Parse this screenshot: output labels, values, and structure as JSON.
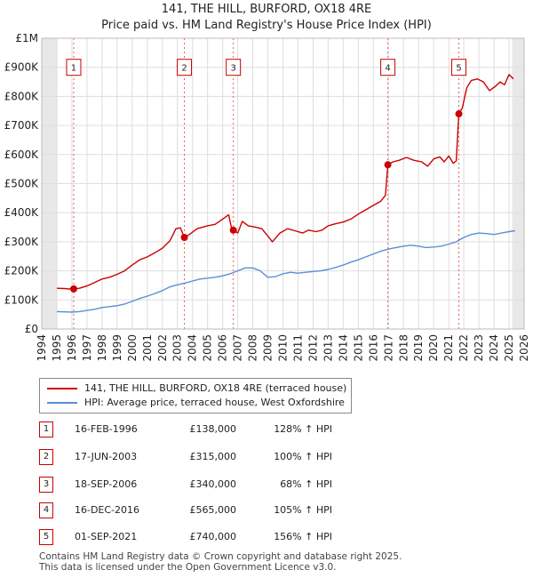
{
  "chart_data": {
    "type": "line",
    "title": "141, THE HILL, BURFORD, OX18 4RE",
    "subtitle": "Price paid vs. HM Land Registry's House Price Index (HPI)",
    "xlim": [
      1994,
      2026
    ],
    "ylim": [
      0,
      1000000
    ],
    "x_ticks": [
      "1994",
      "1995",
      "1996",
      "1997",
      "1998",
      "1999",
      "2000",
      "2001",
      "2002",
      "2003",
      "2004",
      "2005",
      "2006",
      "2007",
      "2008",
      "2009",
      "2010",
      "2011",
      "2012",
      "2013",
      "2014",
      "2015",
      "2016",
      "2017",
      "2018",
      "2019",
      "2020",
      "2021",
      "2022",
      "2023",
      "2024",
      "2025",
      "2026"
    ],
    "y_ticks": [
      {
        "value": 0,
        "label": "£0"
      },
      {
        "value": 100000,
        "label": "£100K"
      },
      {
        "value": 200000,
        "label": "£200K"
      },
      {
        "value": 300000,
        "label": "£300K"
      },
      {
        "value": 400000,
        "label": "£400K"
      },
      {
        "value": 500000,
        "label": "£500K"
      },
      {
        "value": 600000,
        "label": "£600K"
      },
      {
        "value": 700000,
        "label": "£700K"
      },
      {
        "value": 800000,
        "label": "£800K"
      },
      {
        "value": 900000,
        "label": "£900K"
      },
      {
        "value": 1000000,
        "label": "£1M"
      }
    ],
    "grid": true,
    "series": [
      {
        "name": "141, THE HILL, BURFORD, OX18 4RE (terraced house)",
        "color": "#cc0000",
        "points": [
          [
            1995.0,
            140000
          ],
          [
            1995.5,
            139000
          ],
          [
            1996.0,
            137000
          ],
          [
            1996.12,
            138000
          ],
          [
            1996.5,
            140000
          ],
          [
            1997.0,
            148000
          ],
          [
            1997.5,
            160000
          ],
          [
            1998.0,
            172000
          ],
          [
            1998.5,
            178000
          ],
          [
            1999.0,
            188000
          ],
          [
            1999.5,
            200000
          ],
          [
            2000.0,
            220000
          ],
          [
            2000.5,
            238000
          ],
          [
            2001.0,
            248000
          ],
          [
            2001.5,
            262000
          ],
          [
            2002.0,
            278000
          ],
          [
            2002.5,
            303000
          ],
          [
            2002.9,
            345000
          ],
          [
            2003.2,
            348000
          ],
          [
            2003.46,
            315000
          ],
          [
            2003.8,
            325000
          ],
          [
            2004.3,
            345000
          ],
          [
            2005.0,
            355000
          ],
          [
            2005.5,
            360000
          ],
          [
            2006.0,
            378000
          ],
          [
            2006.4,
            393000
          ],
          [
            2006.6,
            345000
          ],
          [
            2006.71,
            340000
          ],
          [
            2007.0,
            330000
          ],
          [
            2007.3,
            370000
          ],
          [
            2007.7,
            355000
          ],
          [
            2008.2,
            350000
          ],
          [
            2008.6,
            345000
          ],
          [
            2009.0,
            320000
          ],
          [
            2009.3,
            300000
          ],
          [
            2009.8,
            330000
          ],
          [
            2010.3,
            345000
          ],
          [
            2010.8,
            338000
          ],
          [
            2011.3,
            330000
          ],
          [
            2011.7,
            340000
          ],
          [
            2012.2,
            335000
          ],
          [
            2012.6,
            340000
          ],
          [
            2013.0,
            355000
          ],
          [
            2013.5,
            362000
          ],
          [
            2014.0,
            368000
          ],
          [
            2014.5,
            378000
          ],
          [
            2015.0,
            395000
          ],
          [
            2015.5,
            410000
          ],
          [
            2016.0,
            425000
          ],
          [
            2016.5,
            440000
          ],
          [
            2016.8,
            460000
          ],
          [
            2016.96,
            565000
          ],
          [
            2017.3,
            575000
          ],
          [
            2017.7,
            580000
          ],
          [
            2018.2,
            590000
          ],
          [
            2018.7,
            580000
          ],
          [
            2019.2,
            575000
          ],
          [
            2019.6,
            560000
          ],
          [
            2020.0,
            585000
          ],
          [
            2020.4,
            592000
          ],
          [
            2020.7,
            575000
          ],
          [
            2021.0,
            595000
          ],
          [
            2021.3,
            570000
          ],
          [
            2021.5,
            578000
          ],
          [
            2021.67,
            740000
          ],
          [
            2021.9,
            760000
          ],
          [
            2022.2,
            830000
          ],
          [
            2022.5,
            855000
          ],
          [
            2022.9,
            860000
          ],
          [
            2023.3,
            850000
          ],
          [
            2023.7,
            820000
          ],
          [
            2024.1,
            835000
          ],
          [
            2024.4,
            850000
          ],
          [
            2024.7,
            840000
          ],
          [
            2025.0,
            875000
          ],
          [
            2025.3,
            860000
          ]
        ]
      },
      {
        "name": "HPI: Average price, terraced house, West Oxfordshire",
        "color": "#5b8fd4",
        "points": [
          [
            1995.0,
            60000
          ],
          [
            1995.5,
            59000
          ],
          [
            1996.0,
            58000
          ],
          [
            1996.5,
            60000
          ],
          [
            1997.0,
            64000
          ],
          [
            1997.5,
            68000
          ],
          [
            1998.0,
            74000
          ],
          [
            1998.5,
            77000
          ],
          [
            1999.0,
            80000
          ],
          [
            1999.5,
            86000
          ],
          [
            2000.0,
            95000
          ],
          [
            2000.5,
            105000
          ],
          [
            2001.0,
            113000
          ],
          [
            2001.5,
            122000
          ],
          [
            2002.0,
            132000
          ],
          [
            2002.5,
            145000
          ],
          [
            2003.0,
            152000
          ],
          [
            2003.5,
            158000
          ],
          [
            2004.0,
            165000
          ],
          [
            2004.5,
            172000
          ],
          [
            2005.0,
            175000
          ],
          [
            2005.5,
            178000
          ],
          [
            2006.0,
            183000
          ],
          [
            2006.5,
            190000
          ],
          [
            2007.0,
            200000
          ],
          [
            2007.5,
            210000
          ],
          [
            2008.0,
            210000
          ],
          [
            2008.5,
            200000
          ],
          [
            2009.0,
            178000
          ],
          [
            2009.5,
            180000
          ],
          [
            2010.0,
            190000
          ],
          [
            2010.5,
            195000
          ],
          [
            2011.0,
            192000
          ],
          [
            2011.5,
            195000
          ],
          [
            2012.0,
            198000
          ],
          [
            2012.5,
            200000
          ],
          [
            2013.0,
            205000
          ],
          [
            2013.5,
            212000
          ],
          [
            2014.0,
            220000
          ],
          [
            2014.5,
            230000
          ],
          [
            2015.0,
            238000
          ],
          [
            2015.5,
            248000
          ],
          [
            2016.0,
            258000
          ],
          [
            2016.5,
            268000
          ],
          [
            2017.0,
            275000
          ],
          [
            2017.5,
            280000
          ],
          [
            2018.0,
            285000
          ],
          [
            2018.5,
            288000
          ],
          [
            2019.0,
            285000
          ],
          [
            2019.5,
            280000
          ],
          [
            2020.0,
            282000
          ],
          [
            2020.5,
            285000
          ],
          [
            2021.0,
            292000
          ],
          [
            2021.5,
            300000
          ],
          [
            2022.0,
            315000
          ],
          [
            2022.5,
            325000
          ],
          [
            2023.0,
            330000
          ],
          [
            2023.5,
            328000
          ],
          [
            2024.0,
            325000
          ],
          [
            2024.5,
            330000
          ],
          [
            2025.0,
            335000
          ],
          [
            2025.4,
            338000
          ]
        ]
      }
    ],
    "sales": [
      {
        "n": "1",
        "x": 1996.12,
        "y": 138000
      },
      {
        "n": "2",
        "x": 2003.46,
        "y": 315000
      },
      {
        "n": "3",
        "x": 2006.71,
        "y": 340000
      },
      {
        "n": "4",
        "x": 2016.96,
        "y": 565000
      },
      {
        "n": "5",
        "x": 2021.67,
        "y": 740000
      }
    ],
    "shade_ranges": [
      [
        1994,
        1995
      ],
      [
        2025.2,
        2026
      ]
    ]
  },
  "legend": {
    "property": "141, THE HILL, BURFORD, OX18 4RE (terraced house)",
    "hpi": "HPI: Average price, terraced house, West Oxfordshire",
    "property_color": "#cc0000",
    "hpi_color": "#5b8fd4"
  },
  "sales_table": [
    {
      "n": "1",
      "date": "16-FEB-1996",
      "price": "£138,000",
      "hpi": "128% ↑ HPI"
    },
    {
      "n": "2",
      "date": "17-JUN-2003",
      "price": "£315,000",
      "hpi": "100% ↑ HPI"
    },
    {
      "n": "3",
      "date": "18-SEP-2006",
      "price": "£340,000",
      "hpi": "68% ↑ HPI"
    },
    {
      "n": "4",
      "date": "16-DEC-2016",
      "price": "£565,000",
      "hpi": "105% ↑ HPI"
    },
    {
      "n": "5",
      "date": "01-SEP-2021",
      "price": "£740,000",
      "hpi": "156% ↑ HPI"
    }
  ],
  "footer": {
    "line1": "Contains HM Land Registry data © Crown copyright and database right 2025.",
    "line2": "This data is licensed under the Open Government Licence v3.0."
  }
}
